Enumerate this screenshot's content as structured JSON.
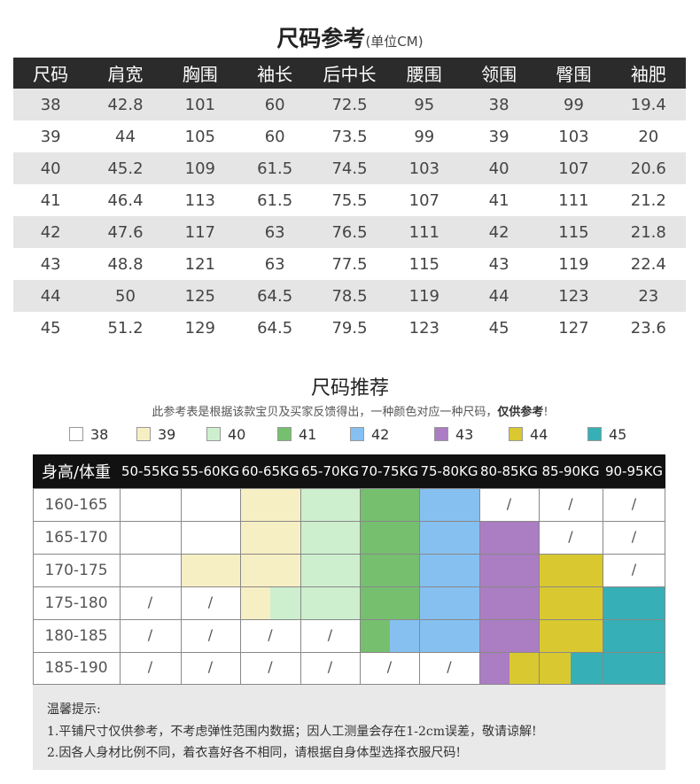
{
  "size_chart": {
    "title": "尺码参考",
    "unit": "(单位CM)",
    "headers": [
      "尺码",
      "肩宽",
      "胸围",
      "袖长",
      "后中长",
      "腰围",
      "领围",
      "臀围",
      "袖肥"
    ],
    "rows": [
      [
        "38",
        "42.8",
        "101",
        "60",
        "72.5",
        "95",
        "38",
        "99",
        "19.4"
      ],
      [
        "39",
        "44",
        "105",
        "60",
        "73.5",
        "99",
        "39",
        "103",
        "20"
      ],
      [
        "40",
        "45.2",
        "109",
        "61.5",
        "74.5",
        "103",
        "40",
        "107",
        "20.6"
      ],
      [
        "41",
        "46.4",
        "113",
        "61.5",
        "75.5",
        "107",
        "41",
        "111",
        "21.2"
      ],
      [
        "42",
        "47.6",
        "117",
        "63",
        "76.5",
        "111",
        "42",
        "115",
        "21.8"
      ],
      [
        "43",
        "48.8",
        "121",
        "63",
        "77.5",
        "115",
        "43",
        "119",
        "22.4"
      ],
      [
        "44",
        "50",
        "125",
        "64.5",
        "78.5",
        "119",
        "44",
        "123",
        "23"
      ],
      [
        "45",
        "51.2",
        "129",
        "64.5",
        "79.5",
        "123",
        "45",
        "127",
        "23.6"
      ]
    ]
  },
  "recommend": {
    "title": "尺码推荐",
    "subtitle": "此参考表是根据该款宝贝及买家反馈得出，一种颜色对应一种尺码，",
    "subtitle_bold": "仅供参考",
    "subtitle_end": "!",
    "legend": [
      {
        "label": "38",
        "color": "#ffffff"
      },
      {
        "label": "39",
        "color": "#f7efc4"
      },
      {
        "label": "40",
        "color": "#cdefce"
      },
      {
        "label": "41",
        "color": "#76bf6f"
      },
      {
        "label": "42",
        "color": "#86c0f0"
      },
      {
        "label": "43",
        "color": "#ab7dc2"
      },
      {
        "label": "44",
        "color": "#d9c830"
      },
      {
        "label": "45",
        "color": "#36b0b6"
      }
    ],
    "corner_label": "身高/体重",
    "weights": [
      "50-55KG",
      "55-60KG",
      "60-65KG",
      "65-70KG",
      "70-75KG",
      "75-80KG",
      "80-85KG",
      "85-90KG",
      "90-95KG"
    ],
    "heights": [
      "160-165",
      "165-170",
      "170-175",
      "175-180",
      "180-185",
      "185-190"
    ],
    "slash": "/",
    "cells": [
      [
        [
          "38"
        ],
        [
          "38"
        ],
        [
          "39"
        ],
        [
          "40"
        ],
        [
          "41"
        ],
        [
          "42"
        ],
        [
          "/"
        ],
        [
          "/"
        ],
        [
          "/"
        ]
      ],
      [
        [
          "38"
        ],
        [
          "38"
        ],
        [
          "39"
        ],
        [
          "40"
        ],
        [
          "41"
        ],
        [
          "42"
        ],
        [
          "43"
        ],
        [
          "/"
        ],
        [
          "/"
        ]
      ],
      [
        [
          "38"
        ],
        [
          "39"
        ],
        [
          "39"
        ],
        [
          "40"
        ],
        [
          "41"
        ],
        [
          "42"
        ],
        [
          "43"
        ],
        [
          "44"
        ],
        [
          "/"
        ]
      ],
      [
        [
          "/"
        ],
        [
          "/"
        ],
        [
          "39",
          "40"
        ],
        [
          "40"
        ],
        [
          "41"
        ],
        [
          "42"
        ],
        [
          "43"
        ],
        [
          "44"
        ],
        [
          "45"
        ]
      ],
      [
        [
          "/"
        ],
        [
          "/"
        ],
        [
          "/"
        ],
        [
          "/"
        ],
        [
          "41",
          "42"
        ],
        [
          "42"
        ],
        [
          "43"
        ],
        [
          "44"
        ],
        [
          "45"
        ]
      ],
      [
        [
          "/"
        ],
        [
          "/"
        ],
        [
          "/"
        ],
        [
          "/"
        ],
        [
          "/"
        ],
        [
          "/"
        ],
        [
          "43",
          "44"
        ],
        [
          "44",
          "45"
        ],
        [
          "45"
        ]
      ]
    ]
  },
  "notes": {
    "heading": "温馨提示:",
    "line1": "1.平铺尺寸仅供参考，不考虑弹性范围内数据；因人工测量会存在1-2cm误差，敬请谅解!",
    "line2": "2.因各人身材比例不同，着衣喜好各不相同，请根据自身体型选择衣服尺码!"
  }
}
